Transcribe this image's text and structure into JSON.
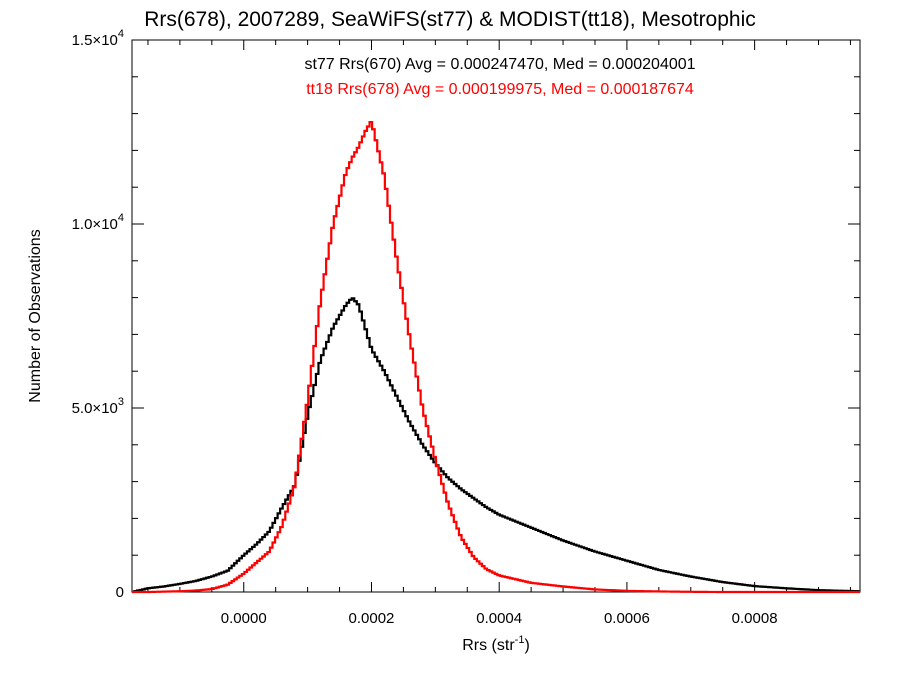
{
  "chart_data": {
    "type": "line",
    "title": "Rrs(678), 2007289, SeaWiFS(st77) & MODIST(tt18), Mesotrophic",
    "xlabel": "Rrs (str",
    "xlabel_sup": "-1",
    "xlabel_suffix": ")",
    "ylabel": "Number of Observations",
    "xlim": [
      -0.000175,
      0.000965
    ],
    "ylim": [
      0,
      15000
    ],
    "x_ticks": [
      {
        "value": 0.0,
        "label": "0.0000"
      },
      {
        "value": 0.0002,
        "label": "0.0002"
      },
      {
        "value": 0.0004,
        "label": "0.0004"
      },
      {
        "value": 0.0006,
        "label": "0.0006"
      },
      {
        "value": 0.0008,
        "label": "0.0008"
      }
    ],
    "y_ticks": [
      {
        "value": 0,
        "mantissa": "0",
        "exp": ""
      },
      {
        "value": 5000,
        "mantissa": "5.0×10",
        "exp": "3"
      },
      {
        "value": 10000,
        "mantissa": "1.0×10",
        "exp": "4"
      },
      {
        "value": 15000,
        "mantissa": "1.5×10",
        "exp": "4"
      }
    ],
    "annotations": [
      {
        "text": "st77 Rrs(670) Avg = 0.000247470, Med = 0.000204001",
        "color": "#000000"
      },
      {
        "text": "tt18 Rrs(678) Avg = 0.000199975, Med = 0.000187674",
        "color": "#ff0000"
      }
    ],
    "series": [
      {
        "color": "#000000",
        "x": [
          -0.000175,
          -0.00015,
          -0.000125,
          -0.0001,
          -7.5e-05,
          -5e-05,
          -2.5e-05,
          0.0,
          2e-05,
          4e-05,
          6e-05,
          8e-05,
          0.0001,
          0.00012,
          0.00014,
          0.00016,
          0.00017,
          0.00018,
          0.00019,
          0.0002,
          0.00022,
          0.00024,
          0.00026,
          0.00028,
          0.0003,
          0.00032,
          0.00034,
          0.00036,
          0.00038,
          0.0004,
          0.00045,
          0.0005,
          0.00055,
          0.0006,
          0.00065,
          0.0007,
          0.00075,
          0.0008,
          0.00085,
          0.0009,
          0.000965
        ],
        "y": [
          0,
          100,
          150,
          220,
          300,
          420,
          580,
          1000,
          1300,
          1650,
          2300,
          2900,
          4800,
          6300,
          7200,
          7800,
          8000,
          7800,
          7200,
          6600,
          6000,
          5300,
          4600,
          4000,
          3500,
          3100,
          2800,
          2550,
          2300,
          2100,
          1750,
          1400,
          1100,
          850,
          600,
          420,
          270,
          160,
          100,
          50,
          20
        ]
      },
      {
        "color": "#ff0000",
        "x": [
          -0.000175,
          -0.00015,
          -0.000125,
          -0.0001,
          -7.5e-05,
          -5e-05,
          -2.5e-05,
          0.0,
          2e-05,
          4e-05,
          6e-05,
          8e-05,
          0.0001,
          0.00012,
          0.00014,
          0.00016,
          0.00017,
          0.00018,
          0.00019,
          0.0002,
          0.00022,
          0.00024,
          0.00026,
          0.00028,
          0.0003,
          0.00032,
          0.00034,
          0.00036,
          0.00038,
          0.0004,
          0.00045,
          0.0005,
          0.00055,
          0.0006,
          0.00065,
          0.0007,
          0.00075,
          0.0008,
          0.00085,
          0.0009,
          0.000965
        ],
        "y": [
          0,
          0,
          10,
          20,
          40,
          80,
          200,
          500,
          800,
          1100,
          1800,
          2900,
          5200,
          7900,
          10000,
          11400,
          11800,
          12100,
          12500,
          12800,
          11300,
          9000,
          6900,
          5000,
          3600,
          2400,
          1500,
          950,
          620,
          450,
          250,
          150,
          70,
          30,
          15,
          5,
          0,
          0,
          0,
          0,
          0
        ]
      }
    ]
  }
}
